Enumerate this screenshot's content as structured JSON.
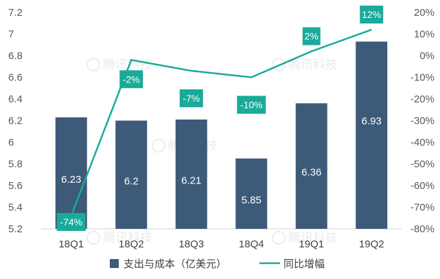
{
  "chart_data": {
    "type": "bar+line",
    "categories": [
      "18Q1",
      "18Q2",
      "18Q3",
      "18Q4",
      "19Q1",
      "19Q2"
    ],
    "series": [
      {
        "name": "支出与成本（亿美元）",
        "type": "bar",
        "axis": "left",
        "values": [
          6.23,
          6.2,
          6.21,
          5.85,
          6.36,
          6.93
        ],
        "labels": [
          "6.23",
          "6.2",
          "6.21",
          "5.85",
          "6.36",
          "6.93"
        ],
        "color": "#3d5a78"
      },
      {
        "name": "同比增幅",
        "type": "line",
        "axis": "right",
        "values": [
          -74,
          -2,
          -7,
          -10,
          2,
          12
        ],
        "labels": [
          "-74%",
          "-2%",
          "-7%",
          "-10%",
          "2%",
          "12%"
        ],
        "color": "#1aaa9a"
      }
    ],
    "left_axis": {
      "min": 5.2,
      "max": 7.2,
      "ticks": [
        "5.2",
        "5.4",
        "5.6",
        "5.8",
        "6",
        "6.2",
        "6.4",
        "6.6",
        "6.8",
        "7",
        "7.2"
      ],
      "tick_values": [
        5.2,
        5.4,
        5.6,
        5.8,
        6.0,
        6.2,
        6.4,
        6.6,
        6.8,
        7.0,
        7.2
      ]
    },
    "right_axis": {
      "min": -80,
      "max": 20,
      "ticks": [
        "-80%",
        "-70%",
        "-60%",
        "-50%",
        "-40%",
        "-30%",
        "-20%",
        "-10%",
        "0%",
        "10%",
        "20%"
      ],
      "tick_values": [
        -80,
        -70,
        -60,
        -50,
        -40,
        -30,
        -20,
        -10,
        0,
        10,
        20
      ]
    },
    "legend_position": "bottom-center",
    "grid": false,
    "watermark": "腾讯科技"
  }
}
